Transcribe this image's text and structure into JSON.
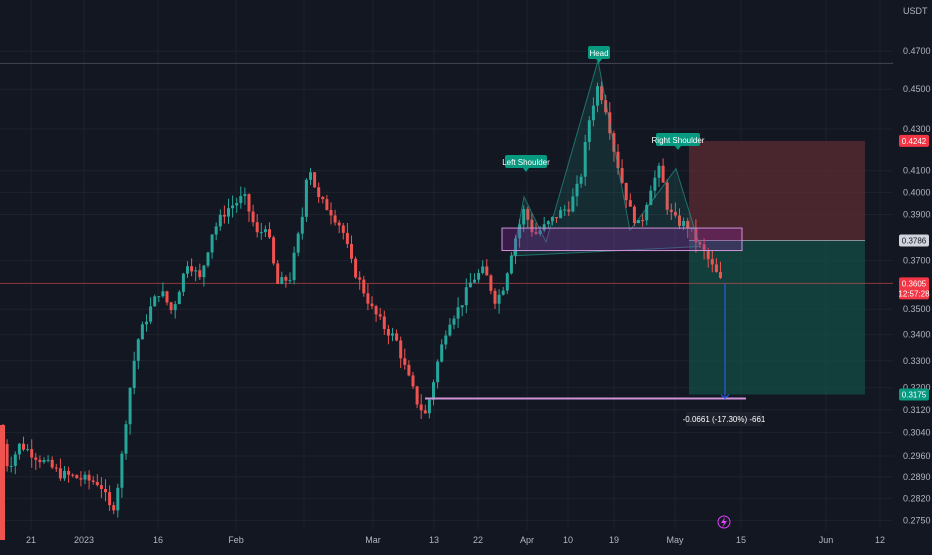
{
  "currency": "USDT",
  "colors": {
    "background": "#131722",
    "grid": "#1e222d",
    "bull": "#26a69a",
    "bear": "#ef5350",
    "text": "#b2b5be",
    "annotation": "#089981",
    "stop_zone": "#5c2b33",
    "target_zone": "#134a44",
    "neckline_box": "#9c27b0"
  },
  "price_scale": {
    "ticks": [
      "0.4700",
      "0.4500",
      "0.4300",
      "0.4100",
      "0.4000",
      "0.3900",
      "0.3700",
      "0.3500",
      "0.3400",
      "0.3300",
      "0.3200",
      "0.3120",
      "0.3040",
      "0.2960",
      "0.2890",
      "0.2820",
      "0.2750"
    ]
  },
  "price_tags": [
    {
      "id": "stop",
      "value": "0.4242",
      "color": "#f23645"
    },
    {
      "id": "entry",
      "value": "0.3786",
      "color": "#d1d4dc"
    },
    {
      "id": "last",
      "value": "0.3605",
      "sub": "12:57:28",
      "color": "#f23645"
    },
    {
      "id": "target",
      "value": "0.3175",
      "color": "#089981"
    }
  ],
  "time_axis": [
    "21",
    "2023",
    "16",
    "Feb",
    "Mar",
    "13",
    "22",
    "Apr",
    "10",
    "19",
    "May",
    "15",
    "Jun",
    "12"
  ],
  "annotations": {
    "head": "Head",
    "left_shoulder": "Left Shoulder",
    "right_shoulder": "Right Shoulder",
    "measure": "-0.0661 (-17.30%) -661"
  },
  "chart_data": {
    "type": "candlestick",
    "title": "",
    "ylabel": "USDT",
    "y_scale": "log",
    "ylim": [
      0.275,
      0.485
    ],
    "x_range": [
      "2022-12-15",
      "2023-06-15"
    ],
    "pattern": {
      "name": "Head and Shoulders",
      "left_shoulder_price": 0.398,
      "head_price": 0.465,
      "right_shoulder_price": 0.411,
      "neckline": [
        0.373,
        0.382
      ]
    },
    "position": {
      "type": "short",
      "entry": 0.3786,
      "stop": 0.4242,
      "target": 0.3175,
      "last_price": 0.3605,
      "measured_change": -0.0661,
      "measured_change_pct": -17.3
    },
    "horizontal_levels": [
      0.4635,
      0.3605,
      0.3175
    ]
  }
}
